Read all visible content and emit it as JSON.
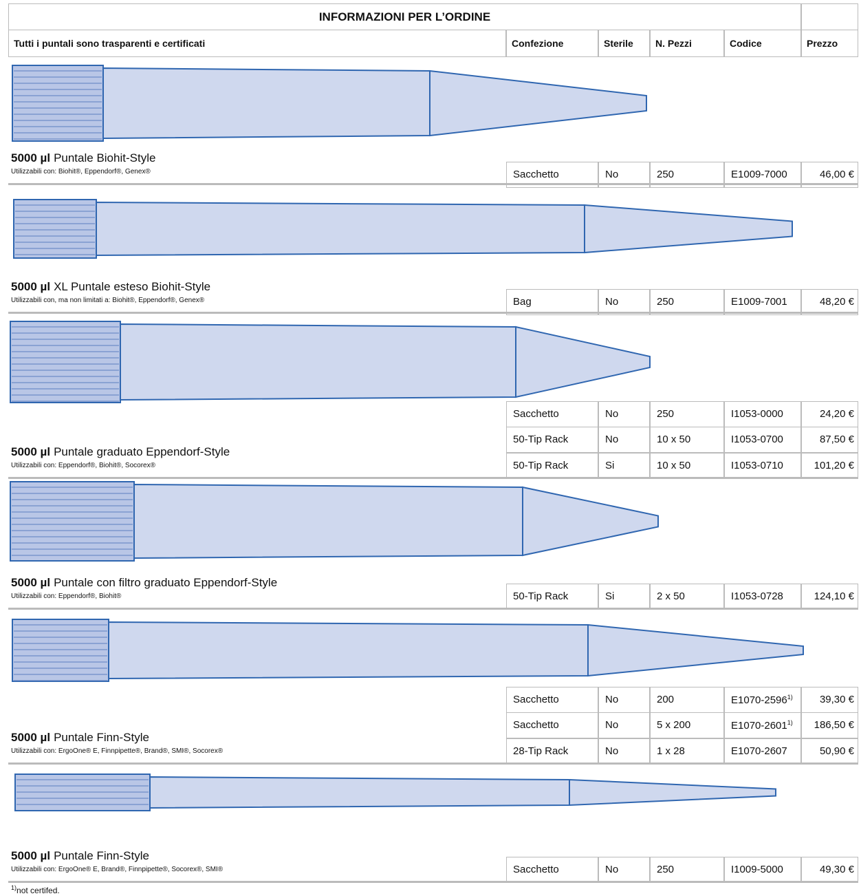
{
  "header": {
    "title": "INFORMAZIONI PER L’ORDINE"
  },
  "columns": [
    "Tutti i puntali sono trasparenti e certificati",
    "Confezione",
    "Sterile",
    "N. Pezzi",
    "Codice",
    "Prezzo"
  ],
  "products": [
    {
      "volume": "5000 µl",
      "name": "Puntale Biohit-Style",
      "compat": "Utilizzabili con: Biohit®, Eppendorf®, Genex®",
      "rows": [
        {
          "package": "Sacchetto",
          "sterile": "No",
          "pieces": "250",
          "code": "E1009-7000",
          "price": "46,00 €"
        }
      ]
    },
    {
      "volume": "5000 µl",
      "name": "XL Puntale esteso Biohit-Style",
      "compat": "Utilizzabili con, ma non limitati a: Biohit®, Eppendorf®, Genex®",
      "rows": [
        {
          "package": "Bag",
          "sterile": "No",
          "pieces": "250",
          "code": "E1009-7001",
          "price": "48,20 €"
        }
      ]
    },
    {
      "volume": "5000 µl",
      "name": "Puntale graduato Eppendorf-Style",
      "compat": "Utilizzabili con: Eppendorf®, Biohit®, Socorex®",
      "rows": [
        {
          "package": "Sacchetto",
          "sterile": "No",
          "pieces": "250",
          "code": "I1053-0000",
          "price": "24,20 €"
        },
        {
          "package": "50-Tip Rack",
          "sterile": "No",
          "pieces": "10 x 50",
          "code": "I1053-0700",
          "price": "87,50 €"
        },
        {
          "package": "50-Tip Rack",
          "sterile": "Si",
          "pieces": "10 x 50",
          "code": "I1053-0710",
          "price": "101,20 €"
        }
      ]
    },
    {
      "volume": "5000 µl",
      "name": "Puntale con filtro graduato Eppendorf-Style",
      "compat": "Utilizzabili con: Eppendorf®, Biohit®",
      "rows": [
        {
          "package": "50-Tip Rack",
          "sterile": "Si",
          "pieces": "2 x 50",
          "code": "I1053-0728",
          "price": "124,10 €"
        }
      ]
    },
    {
      "volume": "5000 µl",
      "name": "Puntale Finn-Style",
      "compat": "Utilizzabili con: ErgoOne® E, Finnpipette®, Brand®, SMI®, Socorex®",
      "rows": [
        {
          "package": "Sacchetto",
          "sterile": "No",
          "pieces": "200",
          "code": "E1070-2596",
          "code_note": "1)",
          "price": "39,30 €"
        },
        {
          "package": "Sacchetto",
          "sterile": "No",
          "pieces": "5 x 200",
          "code": "E1070-2601",
          "code_note": "1)",
          "price": "186,50 €"
        },
        {
          "package": "28-Tip Rack",
          "sterile": "No",
          "pieces": "1 x 28",
          "code": "E1070-2607",
          "price": "50,90 €"
        }
      ]
    },
    {
      "volume": "5000 µl",
      "name": "Puntale Finn-Style",
      "compat": "Utilizzabili con: ErgoOne® E, Brand®, Finnpipette®, Socorex®, SMI®",
      "rows": [
        {
          "package": "Sacchetto",
          "sterile": "No",
          "pieces": "250",
          "code": "I1009-5000",
          "price": "49,30 €"
        }
      ]
    }
  ],
  "footnote": {
    "mark": "1)",
    "text": "not certifed."
  }
}
